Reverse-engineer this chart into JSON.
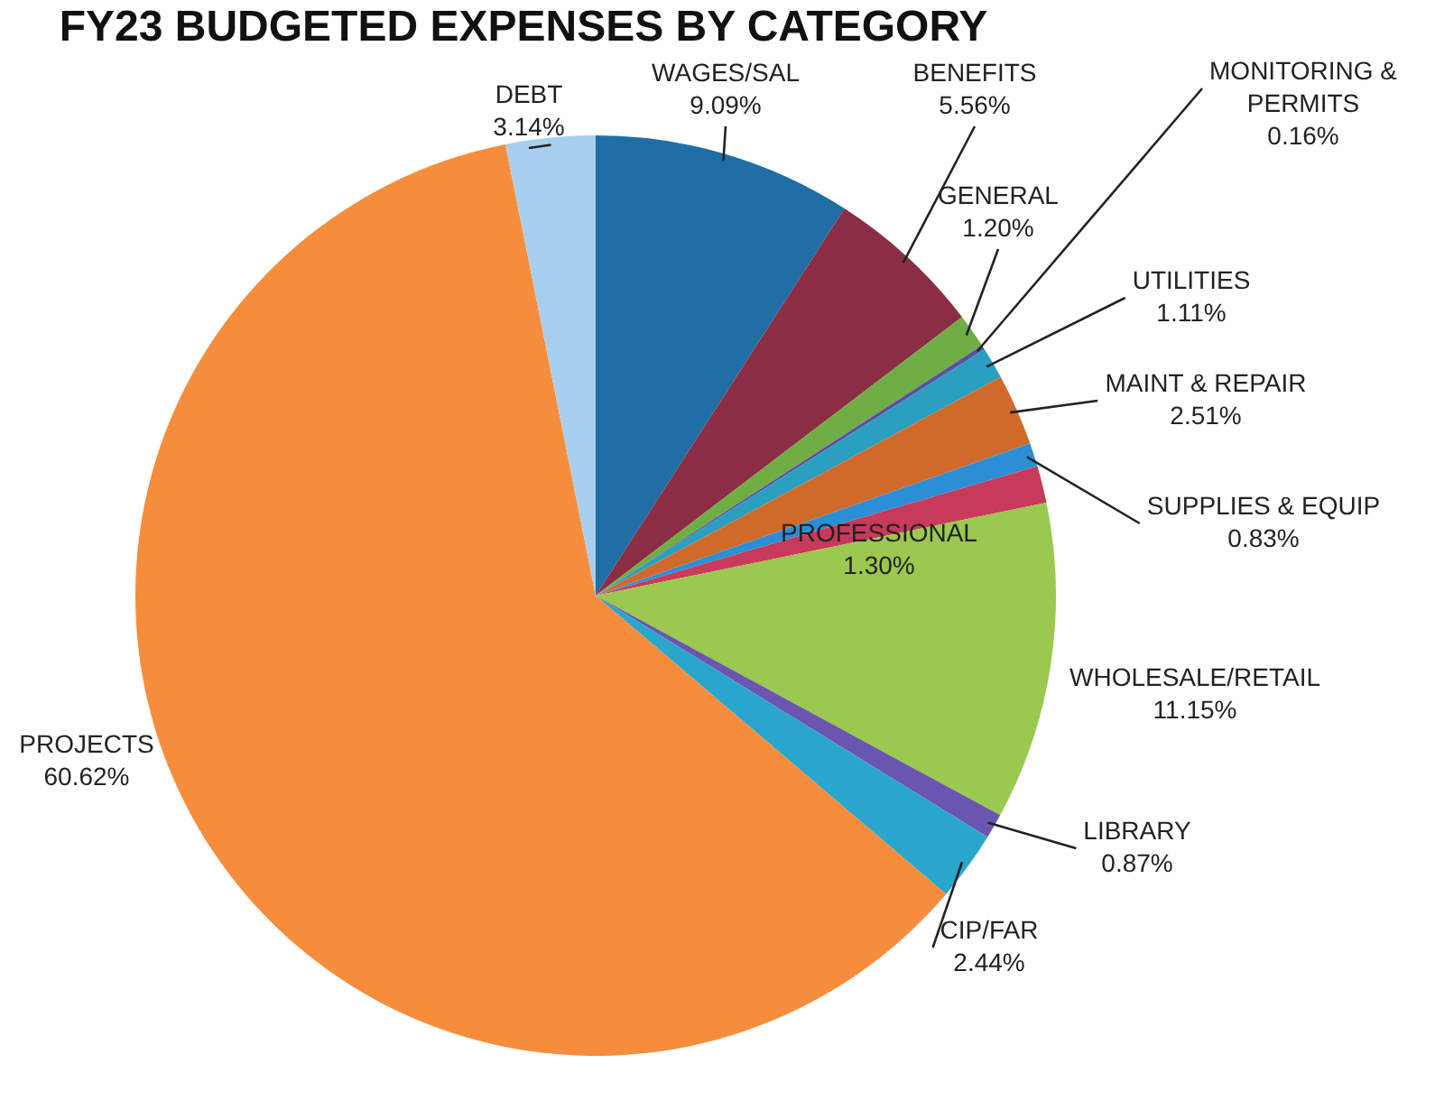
{
  "chart_data": {
    "type": "pie",
    "title": "FY23 BUDGETED EXPENSES BY CATEGORY",
    "categories": [
      "WAGES/SAL",
      "BENEFITS",
      "GENERAL",
      "MONITORING & PERMITS",
      "UTILITIES",
      "MAINT & REPAIR",
      "SUPPLIES & EQUIP",
      "PROFESSIONAL",
      "WHOLESALE/RETAIL",
      "LIBRARY",
      "CIP/FAR",
      "PROJECTS",
      "DEBT"
    ],
    "values": [
      9.09,
      5.56,
      1.2,
      0.16,
      1.11,
      2.51,
      0.83,
      1.3,
      11.15,
      0.87,
      2.44,
      60.62,
      3.14
    ],
    "value_labels": [
      "9.09%",
      "5.56%",
      "1.20%",
      "0.16%",
      "1.11%",
      "2.51%",
      "0.83%",
      "1.30%",
      "11.15%",
      "0.87%",
      "2.44%",
      "60.62%",
      "3.14%"
    ],
    "colors": [
      "#1f6fa6",
      "#8b2e45",
      "#6fae44",
      "#5b4fa0",
      "#2a9fbf",
      "#d06a2a",
      "#2b8fd6",
      "#c83a5a",
      "#9bc84e",
      "#6a55b0",
      "#2aa6cc",
      "#f68d3c",
      "#a9cfee"
    ],
    "legend": false
  }
}
